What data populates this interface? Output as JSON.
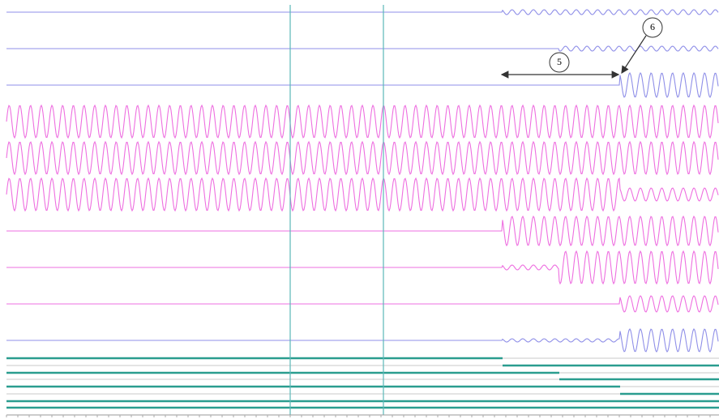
{
  "annotations": [
    {
      "label": "5"
    },
    {
      "label": "6"
    }
  ]
}
